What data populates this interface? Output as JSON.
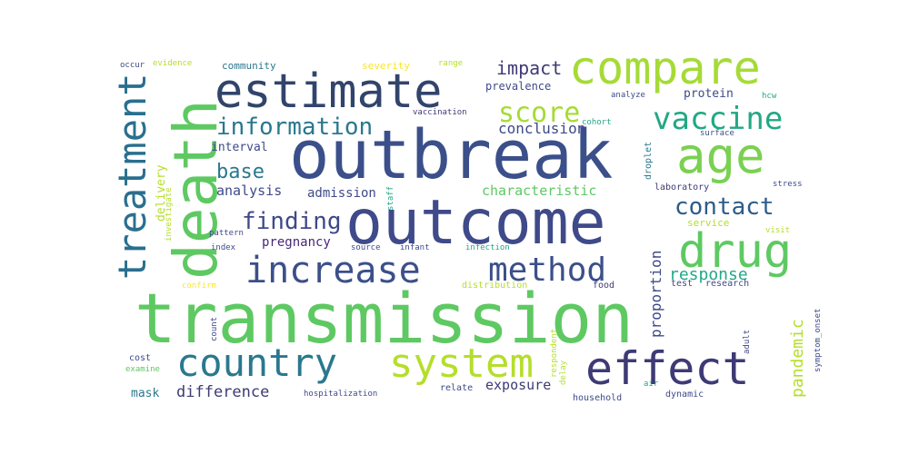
{
  "palette": {
    "dark_indigo": "#3b4f8a",
    "indigo": "#3e4a89",
    "teal": "#2a788e",
    "green": "#22a884",
    "bright_green": "#5ec962",
    "lime": "#b5de2b",
    "yellow": "#fde725",
    "deep_purple": "#482878"
  },
  "words": [
    {
      "text": "transmission",
      "color": "#5ec962"
    },
    {
      "text": "outbreak",
      "color": "#3b4f8a"
    },
    {
      "text": "outcome",
      "color": "#3e4a89"
    },
    {
      "text": "death",
      "color": "#5ec962"
    },
    {
      "text": "estimate",
      "color": "#31446b"
    },
    {
      "text": "compare",
      "color": "#a5db36"
    },
    {
      "text": "age",
      "color": "#7ad151"
    },
    {
      "text": "drug",
      "color": "#5ec962"
    },
    {
      "text": "increase",
      "color": "#3b4f8a"
    },
    {
      "text": "method",
      "color": "#3b4f8a"
    },
    {
      "text": "effect",
      "color": "#3e3a75"
    },
    {
      "text": "system",
      "color": "#b5de2b"
    },
    {
      "text": "country",
      "color": "#2a788e"
    },
    {
      "text": "treatment",
      "color": "#2a6f8e"
    },
    {
      "text": "vaccine",
      "color": "#22a884"
    },
    {
      "text": "score",
      "color": "#a5db36"
    },
    {
      "text": "information",
      "color": "#2a788e"
    },
    {
      "text": "finding",
      "color": "#3e4a89"
    },
    {
      "text": "contact",
      "color": "#2c5c8a"
    },
    {
      "text": "impact",
      "color": "#3e3a75"
    },
    {
      "text": "base",
      "color": "#2a788e"
    },
    {
      "text": "response",
      "color": "#22a884"
    },
    {
      "text": "conclusion",
      "color": "#3e4a89"
    },
    {
      "text": "characteristic",
      "color": "#5ec962"
    },
    {
      "text": "analysis",
      "color": "#3e4a89"
    },
    {
      "text": "admission",
      "color": "#3e4a89"
    },
    {
      "text": "pregnancy",
      "color": "#482878"
    },
    {
      "text": "interval",
      "color": "#3e4a89"
    },
    {
      "text": "difference",
      "color": "#3e3a75"
    },
    {
      "text": "exposure",
      "color": "#3e3a75"
    },
    {
      "text": "pandemic",
      "color": "#b5de2b"
    },
    {
      "text": "proportion",
      "color": "#3e4a89"
    },
    {
      "text": "delivery",
      "color": "#b5de2b"
    },
    {
      "text": "investigate",
      "color": "#b5de2b"
    },
    {
      "text": "protein",
      "color": "#3e4a89"
    },
    {
      "text": "prevalence",
      "color": "#3e4a89"
    },
    {
      "text": "community",
      "color": "#2a788e"
    },
    {
      "text": "severity",
      "color": "#fde725"
    },
    {
      "text": "evidence",
      "color": "#b5de2b"
    },
    {
      "text": "occur",
      "color": "#3e4a89"
    },
    {
      "text": "range",
      "color": "#b5de2b"
    },
    {
      "text": "analyze",
      "color": "#3e4a89"
    },
    {
      "text": "hcw",
      "color": "#22a884"
    },
    {
      "text": "vaccination",
      "color": "#3e3a75"
    },
    {
      "text": "cohort",
      "color": "#22a884"
    },
    {
      "text": "surface",
      "color": "#3e4a89"
    },
    {
      "text": "droplet",
      "color": "#2a788e"
    },
    {
      "text": "stress",
      "color": "#3e4a89"
    },
    {
      "text": "laboratory",
      "color": "#3e3a75"
    },
    {
      "text": "service",
      "color": "#b5de2b"
    },
    {
      "text": "visit",
      "color": "#b5de2b"
    },
    {
      "text": "staff",
      "color": "#22a884"
    },
    {
      "text": "pattern",
      "color": "#3e4a89"
    },
    {
      "text": "index",
      "color": "#3e4a89"
    },
    {
      "text": "source",
      "color": "#3e4a89"
    },
    {
      "text": "infant",
      "color": "#3e4a89"
    },
    {
      "text": "infection",
      "color": "#22a884"
    },
    {
      "text": "confirm",
      "color": "#fde725"
    },
    {
      "text": "distribution",
      "color": "#b5de2b"
    },
    {
      "text": "food",
      "color": "#3e3a75"
    },
    {
      "text": "test",
      "color": "#3e4a89"
    },
    {
      "text": "research",
      "color": "#3e4a89"
    },
    {
      "text": "count",
      "color": "#3e4a89"
    },
    {
      "text": "respondent",
      "color": "#b5de2b"
    },
    {
      "text": "delay",
      "color": "#b5de2b"
    },
    {
      "text": "adult",
      "color": "#3e4a89"
    },
    {
      "text": "symptom_onset",
      "color": "#3e4a89"
    },
    {
      "text": "cost",
      "color": "#3e4a89"
    },
    {
      "text": "examine",
      "color": "#5ec962"
    },
    {
      "text": "mask",
      "color": "#2a788e"
    },
    {
      "text": "hospitalization",
      "color": "#3e4a89"
    },
    {
      "text": "relate",
      "color": "#3e4a89"
    },
    {
      "text": "household",
      "color": "#3e4a89"
    },
    {
      "text": "air",
      "color": "#22a884"
    },
    {
      "text": "dynamic",
      "color": "#3e4a89"
    }
  ]
}
